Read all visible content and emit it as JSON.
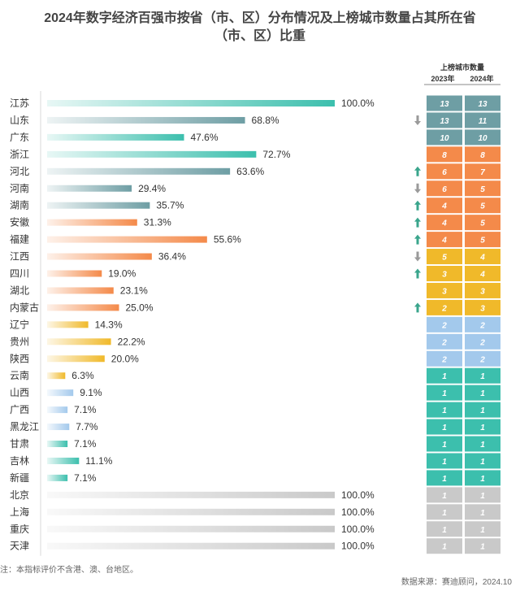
{
  "title": {
    "line1": "2024年数字经济百强市按省（市、区）分布情况及上榜城市数量占其所在省",
    "line2": "（市、区）比重"
  },
  "table_header": {
    "group": "上榜城市数量",
    "col1": "2023年",
    "col2": "2024年"
  },
  "note": "注：本指标评价不含港、澳、台地区。",
  "source": "数据来源：赛迪顾问，2024.10",
  "colors": {
    "teal": "#3cbfad",
    "slate": "#6e9ea4",
    "orange": "#f48a4a",
    "yellow": "#f0b92a",
    "blue": "#a3c9ec",
    "gray": "#c9c9c9",
    "up": "#3aa58c",
    "down": "#9a9a9a"
  },
  "chart_data": {
    "type": "bar",
    "orientation": "horizontal",
    "value_unit": "%",
    "xlim": [
      0,
      100
    ],
    "categories": [
      "江苏",
      "山东",
      "广东",
      "浙江",
      "河北",
      "河南",
      "湖南",
      "安徽",
      "福建",
      "江西",
      "四川",
      "湖北",
      "内蒙古",
      "辽宁",
      "贵州",
      "陕西",
      "云南",
      "山西",
      "广西",
      "黑龙江",
      "甘肃",
      "吉林",
      "新疆",
      "北京",
      "上海",
      "重庆",
      "天津"
    ],
    "values": [
      100.0,
      68.8,
      47.6,
      72.7,
      63.6,
      29.4,
      35.7,
      31.3,
      55.6,
      36.4,
      19.0,
      23.1,
      25.0,
      14.3,
      22.2,
      20.0,
      6.3,
      9.1,
      7.1,
      7.7,
      7.1,
      11.1,
      7.1,
      100.0,
      100.0,
      100.0,
      100.0
    ],
    "labels": [
      "100.0%",
      "68.8%",
      "47.6%",
      "72.7%",
      "63.6%",
      "29.4%",
      "35.7%",
      "31.3%",
      "55.6%",
      "36.4%",
      "19.0%",
      "23.1%",
      "25.0%",
      "14.3%",
      "22.2%",
      "20.0%",
      "6.3%",
      "9.1%",
      "7.1%",
      "7.7%",
      "7.1%",
      "11.1%",
      "7.1%",
      "100.0%",
      "100.0%",
      "100.0%",
      "100.0%"
    ],
    "color_group": [
      "teal",
      "slate",
      "teal",
      "teal",
      "slate",
      "slate",
      "slate",
      "orange",
      "orange",
      "orange",
      "orange",
      "orange",
      "orange",
      "yellow",
      "yellow",
      "yellow",
      "yellow",
      "blue",
      "blue",
      "blue",
      "teal",
      "teal",
      "teal",
      "gray",
      "gray",
      "gray",
      "gray"
    ],
    "city_count_2023": [
      13,
      13,
      10,
      8,
      6,
      6,
      4,
      4,
      4,
      5,
      3,
      3,
      2,
      2,
      2,
      2,
      1,
      1,
      1,
      1,
      1,
      1,
      1,
      1,
      1,
      1,
      1
    ],
    "city_count_2024": [
      13,
      11,
      10,
      8,
      7,
      5,
      5,
      5,
      5,
      4,
      4,
      3,
      3,
      2,
      2,
      2,
      1,
      1,
      1,
      1,
      1,
      1,
      1,
      1,
      1,
      1,
      1
    ],
    "table_fill_group": [
      "slate",
      "slate",
      "slate",
      "orange",
      "orange",
      "orange",
      "orange",
      "orange",
      "orange",
      "yellow",
      "yellow",
      "yellow",
      "yellow",
      "blue",
      "blue",
      "blue",
      "teal",
      "teal",
      "teal",
      "teal",
      "teal",
      "teal",
      "teal",
      "gray",
      "gray",
      "gray",
      "gray"
    ],
    "trend": [
      "",
      "down",
      "",
      "",
      "up",
      "down",
      "up",
      "up",
      "up",
      "down",
      "up",
      "",
      "up",
      "",
      "",
      "",
      "",
      "",
      "",
      "",
      "",
      "",
      "",
      "",
      "",
      "",
      ""
    ]
  }
}
